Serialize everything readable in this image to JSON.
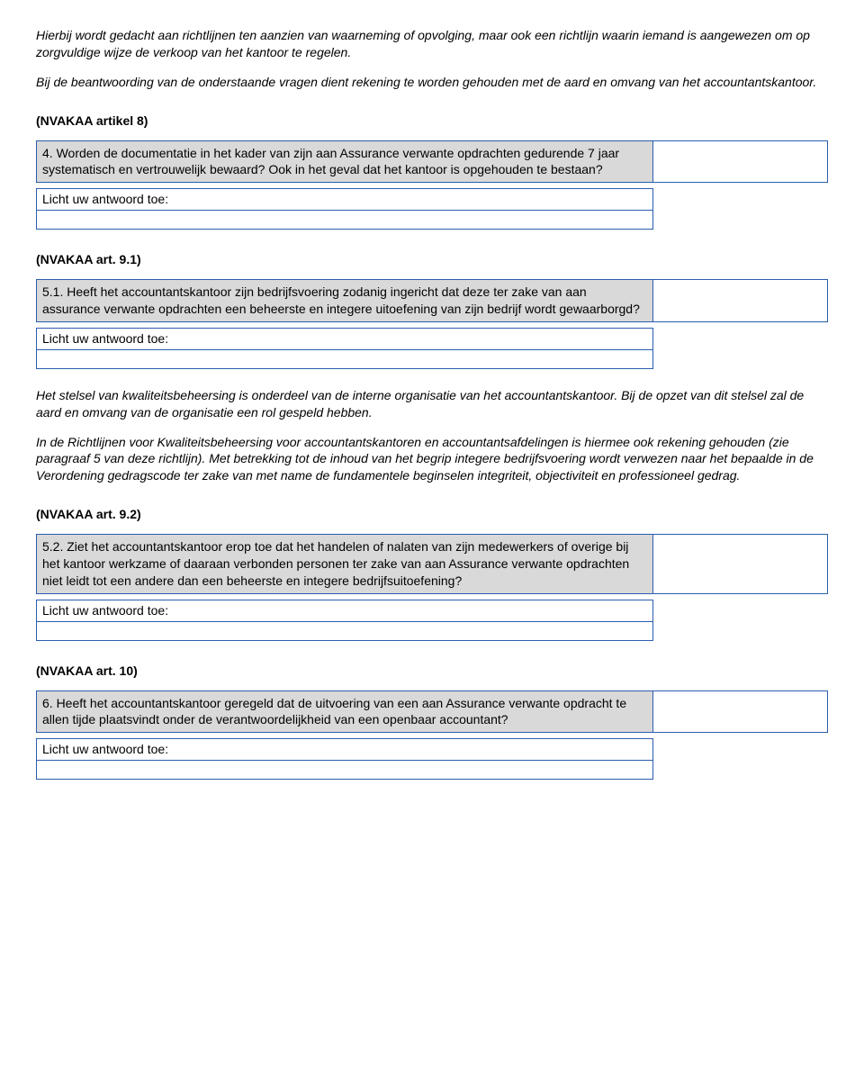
{
  "intro": {
    "p1": "Hierbij wordt gedacht aan richtlijnen ten aanzien van waarneming of opvolging, maar ook een richtlijn waarin iemand is aangewezen om op zorgvuldige wijze de verkoop van het kantoor te regelen.",
    "p2": "Bij de beantwoording van de onderstaande vragen dient rekening te worden gehouden met de aard en omvang van het accountantskantoor."
  },
  "heading1": "(NVAKAA artikel 8)",
  "q4": "4. Worden de documentatie in het kader van zijn aan Assurance verwante opdrachten gedurende 7 jaar systematisch en vertrouwelijk bewaard? Ook in het geval dat het kantoor is opgehouden te bestaan?",
  "explain_label": "Licht uw antwoord toe:",
  "heading2": "(NVAKAA art. 9.1)",
  "q51": "5.1. Heeft het accountantskantoor zijn bedrijfsvoering zodanig ingericht dat deze ter zake van aan assurance verwante opdrachten een beheerste en integere uitoefening van zijn bedrijf wordt gewaarborgd?",
  "mid": {
    "p1": "Het stelsel van kwaliteitsbeheersing is onderdeel van de interne organisatie van het accountantskantoor. Bij de opzet van dit stelsel zal de aard en omvang van de organisatie een rol gespeld hebben.",
    "p2": "In de Richtlijnen voor Kwaliteitsbeheersing voor accountantskantoren en accountantsafdelingen is hiermee ook rekening gehouden (zie paragraaf 5 van deze richtlijn). Met betrekking tot de inhoud van het begrip integere bedrijfsvoering wordt verwezen naar het bepaalde in de Verordening gedragscode ter zake van met name de fundamentele beginselen integriteit, objectiviteit en professioneel gedrag."
  },
  "heading3": "(NVAKAA art. 9.2)",
  "q52": "5.2. Ziet het accountantskantoor erop toe dat het handelen of nalaten van zijn medewerkers of overige bij het kantoor werkzame of daaraan verbonden personen ter zake van aan Assurance verwante opdrachten niet leidt tot een andere dan een beheerste en integere bedrijfsuitoefening?",
  "heading4": "(NVAKAA art. 10)",
  "q6": "6. Heeft het accountantskantoor geregeld dat de uitvoering van een aan Assurance verwante opdracht te allen tijde plaatsvindt onder de verantwoordelijkheid van een openbaar accountant?"
}
